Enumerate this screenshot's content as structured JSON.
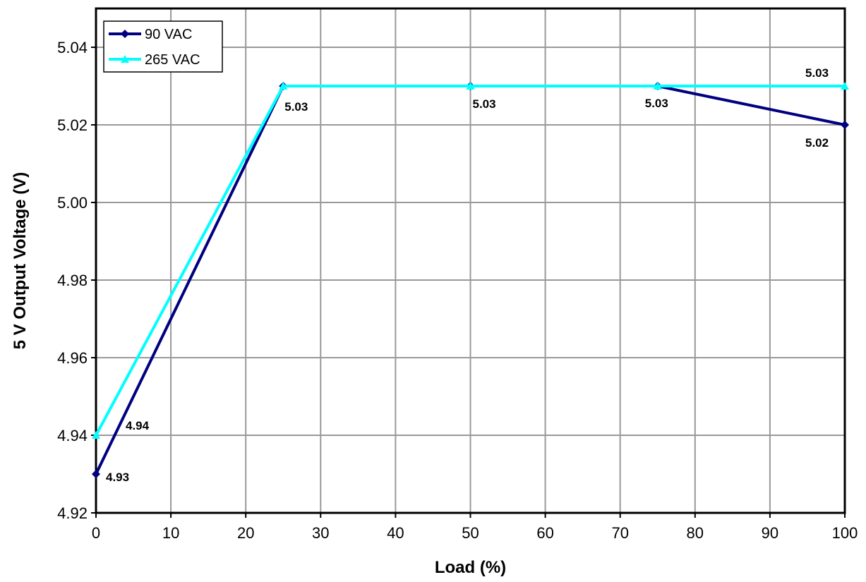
{
  "chart_data": {
    "type": "line",
    "xlabel": "Load (%)",
    "ylabel": "5 V Output Voltage (V)",
    "xlim": [
      0,
      100
    ],
    "ylim": [
      4.92,
      5.05
    ],
    "x_ticks": [
      0,
      10,
      20,
      30,
      40,
      50,
      60,
      70,
      80,
      90,
      100
    ],
    "y_ticks": [
      "4.92",
      "4.94",
      "4.96",
      "4.98",
      "5.00",
      "5.02",
      "5.04"
    ],
    "grid": true,
    "legend_position": "top-left",
    "series": [
      {
        "name": "90 VAC",
        "color": "#000080",
        "marker": "diamond",
        "x": [
          0,
          25,
          50,
          75,
          100
        ],
        "values": [
          4.93,
          5.03,
          5.03,
          5.03,
          5.02
        ],
        "data_labels": [
          "4.93",
          "5.03",
          "5.03",
          "5.03",
          "5.02"
        ]
      },
      {
        "name": "265 VAC",
        "color": "#00FFFF",
        "marker": "triangle",
        "x": [
          0,
          25,
          50,
          75,
          100
        ],
        "values": [
          4.94,
          5.03,
          5.03,
          5.03,
          5.03
        ],
        "data_labels": [
          "4.94",
          "",
          "",
          "",
          "5.03"
        ]
      }
    ]
  }
}
